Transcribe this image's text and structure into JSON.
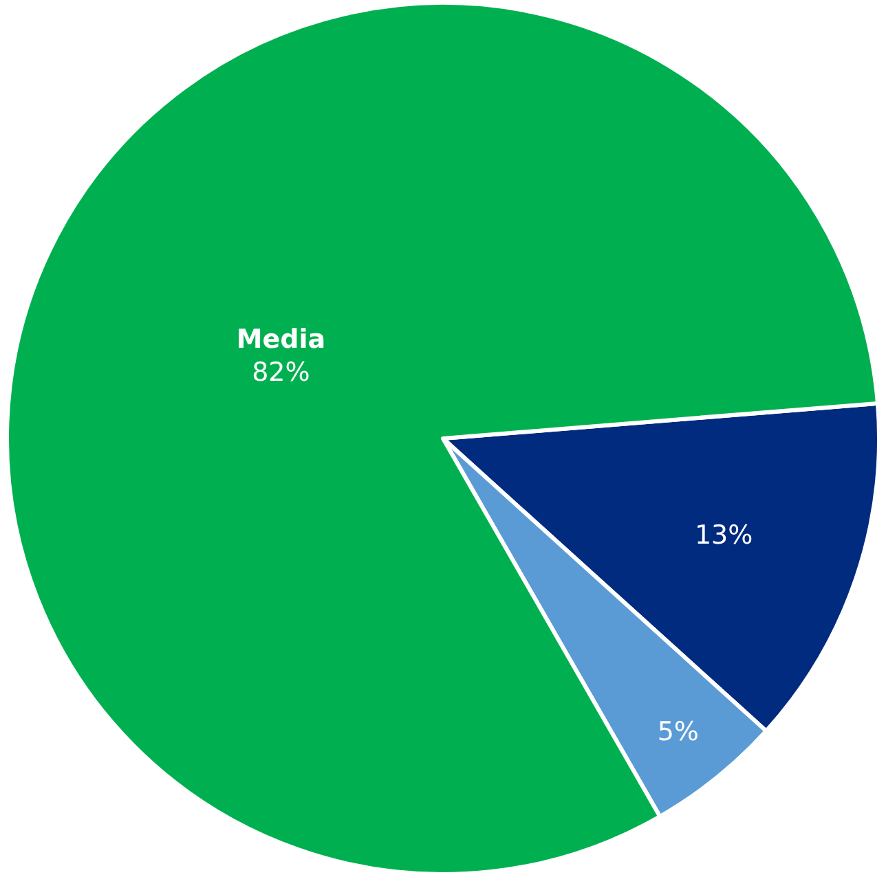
{
  "chart_data": {
    "type": "pie",
    "categories": [
      null,
      null,
      "Media"
    ],
    "values": [
      13,
      5,
      82
    ],
    "colors": [
      "#002b7f",
      "#5b9bd5",
      "#00b050"
    ],
    "value_labels": [
      "13%",
      "5%",
      "82%"
    ]
  }
}
